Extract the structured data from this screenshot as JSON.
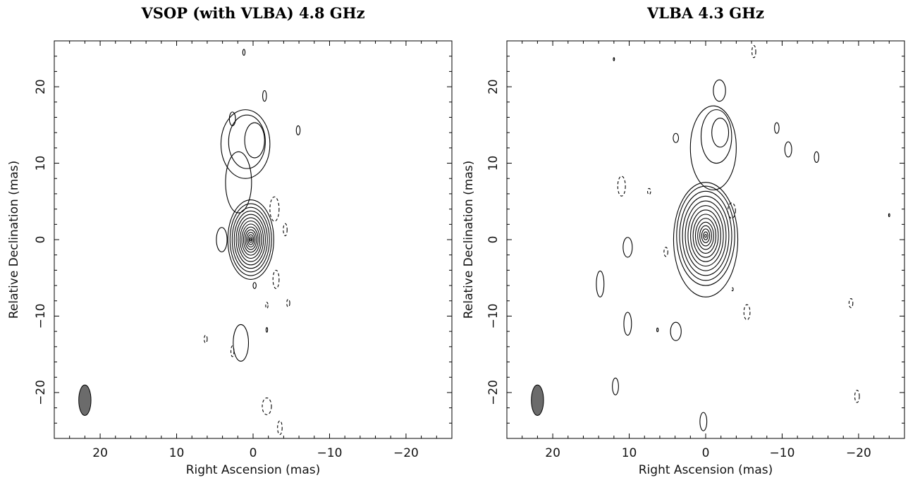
{
  "chart_data": [
    {
      "type": "contour",
      "title": "VSOP (with VLBA) 4.8 GHz",
      "xlabel": "Right Ascension  (mas)",
      "ylabel": "Relative Declination  (mas)",
      "xlim": [
        26,
        -26
      ],
      "ylim": [
        -26,
        26
      ],
      "xticks": [
        20,
        10,
        0,
        -10,
        -20
      ],
      "yticks": [
        -20,
        -10,
        0,
        10,
        20
      ],
      "xtick_labels": [
        "20",
        "10",
        "0",
        "−10",
        "−20"
      ],
      "ytick_labels": [
        "−20",
        "−10",
        "0",
        "10",
        "20"
      ],
      "beam": {
        "x": 22,
        "y": -21,
        "major_mas": 4.0,
        "minor_mas": 1.6,
        "pa_deg": 0
      },
      "core": {
        "x": 0.3,
        "y": 0,
        "contour_levels": 14,
        "max_radius_x_mas": 3.0,
        "max_radius_y_mas": 5.2
      },
      "positive_features": [
        {
          "x": 1.0,
          "y": 12.5,
          "rx": 3.2,
          "ry": 4.5
        },
        {
          "x": 0.8,
          "y": 12.8,
          "rx": 2.4,
          "ry": 3.5
        },
        {
          "x": -0.2,
          "y": 13.0,
          "rx": 1.3,
          "ry": 2.3
        },
        {
          "x": 1.9,
          "y": 7.5,
          "rx": 1.7,
          "ry": 4.0
        },
        {
          "x": 2.7,
          "y": 15.8,
          "rx": 0.4,
          "ry": 0.9
        },
        {
          "x": -1.5,
          "y": 18.8,
          "rx": 0.25,
          "ry": 0.7
        },
        {
          "x": -5.9,
          "y": 14.3,
          "rx": 0.25,
          "ry": 0.6
        },
        {
          "x": 4.1,
          "y": 0.0,
          "rx": 0.7,
          "ry": 1.6
        },
        {
          "x": 1.6,
          "y": -13.5,
          "rx": 1.0,
          "ry": 2.4
        },
        {
          "x": -0.2,
          "y": -6.0,
          "rx": 0.2,
          "ry": 0.4
        },
        {
          "x": 1.2,
          "y": 24.5,
          "rx": 0.15,
          "ry": 0.4
        },
        {
          "x": -1.8,
          "y": -11.8,
          "rx": 0.1,
          "ry": 0.3
        }
      ],
      "negative_features": [
        {
          "x": -2.8,
          "y": 4.0,
          "rx": 0.6,
          "ry": 1.6
        },
        {
          "x": -4.2,
          "y": 1.3,
          "rx": 0.25,
          "ry": 0.8
        },
        {
          "x": -3.0,
          "y": -5.2,
          "rx": 0.4,
          "ry": 1.2
        },
        {
          "x": -1.8,
          "y": -8.6,
          "rx": 0.15,
          "ry": 0.4
        },
        {
          "x": -4.6,
          "y": -8.3,
          "rx": 0.2,
          "ry": 0.5
        },
        {
          "x": 6.2,
          "y": -13.0,
          "rx": 0.2,
          "ry": 0.5
        },
        {
          "x": 2.7,
          "y": -14.6,
          "rx": 0.2,
          "ry": 0.7
        },
        {
          "x": -1.8,
          "y": -21.8,
          "rx": 0.6,
          "ry": 1.1
        },
        {
          "x": -3.5,
          "y": -24.6,
          "rx": 0.3,
          "ry": 0.9
        }
      ]
    },
    {
      "type": "contour",
      "title": "VLBA 4.3 GHz",
      "xlabel": "Right Ascension  (mas)",
      "ylabel": "Relative Declination  (mas)",
      "xlim": [
        26,
        -26
      ],
      "ylim": [
        -26,
        26
      ],
      "xticks": [
        20,
        10,
        0,
        -10,
        -20
      ],
      "yticks": [
        -20,
        -10,
        0,
        10,
        20
      ],
      "xtick_labels": [
        "20",
        "10",
        "0",
        "−10",
        "−20"
      ],
      "ytick_labels": [
        "−20",
        "−10",
        "0",
        "10",
        "20"
      ],
      "beam": {
        "x": 22,
        "y": -21,
        "major_mas": 4.0,
        "minor_mas": 1.6,
        "pa_deg": 0
      },
      "core": {
        "x": 0.0,
        "y": 0.5,
        "contour_levels": 13,
        "max_radius_x_mas": 3.8,
        "max_radius_y_mas": 6.5
      },
      "positive_features": [
        {
          "x": 0.0,
          "y": 0.0,
          "rx": 4.2,
          "ry": 7.5
        },
        {
          "x": -1.0,
          "y": 12.0,
          "rx": 3.0,
          "ry": 5.5
        },
        {
          "x": -1.4,
          "y": 13.5,
          "rx": 2.0,
          "ry": 3.5
        },
        {
          "x": -1.9,
          "y": 14.0,
          "rx": 1.1,
          "ry": 1.9
        },
        {
          "x": -1.8,
          "y": 19.5,
          "rx": 0.8,
          "ry": 1.4
        },
        {
          "x": 3.9,
          "y": 13.3,
          "rx": 0.35,
          "ry": 0.6
        },
        {
          "x": -9.3,
          "y": 14.6,
          "rx": 0.3,
          "ry": 0.7
        },
        {
          "x": -10.8,
          "y": 11.8,
          "rx": 0.45,
          "ry": 1.0
        },
        {
          "x": -14.5,
          "y": 10.8,
          "rx": 0.3,
          "ry": 0.7
        },
        {
          "x": 10.2,
          "y": -1.0,
          "rx": 0.6,
          "ry": 1.3
        },
        {
          "x": 13.8,
          "y": -5.8,
          "rx": 0.5,
          "ry": 1.7
        },
        {
          "x": 10.2,
          "y": -11.0,
          "rx": 0.5,
          "ry": 1.5
        },
        {
          "x": 6.3,
          "y": -11.8,
          "rx": 0.1,
          "ry": 0.25
        },
        {
          "x": 3.9,
          "y": -12.0,
          "rx": 0.7,
          "ry": 1.2
        },
        {
          "x": 11.8,
          "y": -19.2,
          "rx": 0.4,
          "ry": 1.1
        },
        {
          "x": 0.3,
          "y": -23.8,
          "rx": 0.45,
          "ry": 1.2
        },
        {
          "x": 12.0,
          "y": 23.6,
          "rx": 0.08,
          "ry": 0.2
        },
        {
          "x": -24.0,
          "y": 3.2,
          "rx": 0.08,
          "ry": 0.2
        }
      ],
      "negative_features": [
        {
          "x": 11.0,
          "y": 7.0,
          "rx": 0.5,
          "ry": 1.3
        },
        {
          "x": 7.4,
          "y": 6.3,
          "rx": 0.2,
          "ry": 0.4
        },
        {
          "x": 5.2,
          "y": -1.6,
          "rx": 0.25,
          "ry": 0.6
        },
        {
          "x": -3.4,
          "y": 3.8,
          "rx": 0.5,
          "ry": 1.0
        },
        {
          "x": -3.5,
          "y": -6.5,
          "rx": 0.1,
          "ry": 0.2
        },
        {
          "x": -5.4,
          "y": -9.5,
          "rx": 0.4,
          "ry": 1.0
        },
        {
          "x": -6.3,
          "y": 24.6,
          "rx": 0.25,
          "ry": 0.8
        },
        {
          "x": -19.0,
          "y": -8.3,
          "rx": 0.25,
          "ry": 0.6
        },
        {
          "x": -19.8,
          "y": -20.5,
          "rx": 0.3,
          "ry": 0.8
        }
      ]
    }
  ]
}
